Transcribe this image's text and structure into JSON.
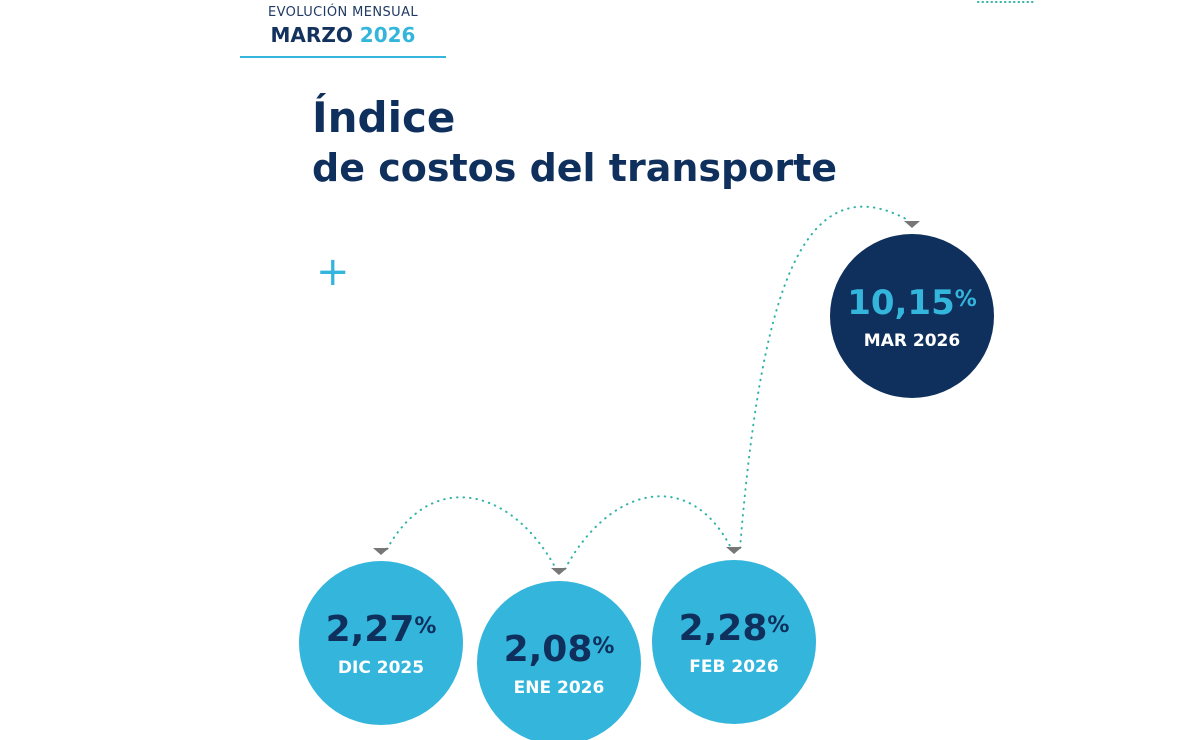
{
  "header": {
    "kicker": "EVOLUCIÓN MENSUAL",
    "month": "MARZO",
    "year": "2026"
  },
  "title": {
    "line1": "Índice",
    "line2": "de costos del transporte"
  },
  "decor": {
    "plus": "+"
  },
  "colors": {
    "navy": "#0f2f5c",
    "light_blue": "#33b5dc",
    "teal_dots": "#2fb3a6",
    "marker_gray": "#777777"
  },
  "chart_data": {
    "type": "scatter",
    "title": "Índice de costos del transporte",
    "unit": "%",
    "series": [
      {
        "points": [
          {
            "label": "DIC 2025",
            "value": 2.27,
            "display": "2,27"
          },
          {
            "label": "ENE 2026",
            "value": 2.08,
            "display": "2,08"
          },
          {
            "label": "FEB 2026",
            "value": 2.28,
            "display": "2,28"
          },
          {
            "label": "MAR 2026",
            "value": 10.15,
            "display": "10,15",
            "highlight": true
          }
        ]
      }
    ]
  }
}
